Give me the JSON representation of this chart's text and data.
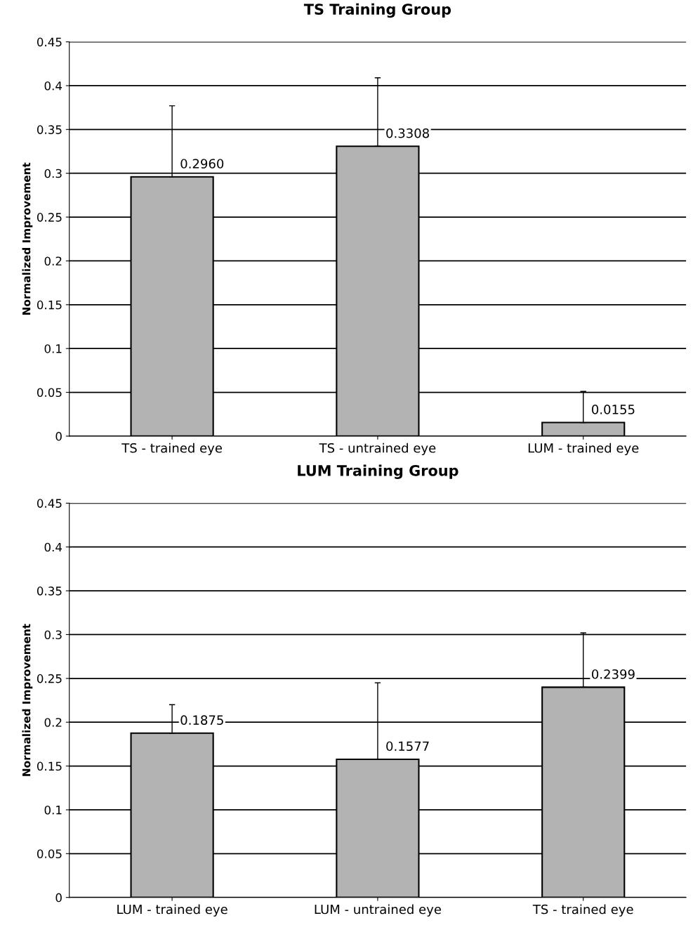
{
  "chart_data": [
    {
      "type": "bar",
      "title": "TS Training Group",
      "ylabel": "Normalized Improvement",
      "categories": [
        "TS - trained eye",
        "TS - untrained eye",
        "LUM - trained eye"
      ],
      "values": [
        0.296,
        0.3308,
        0.0155
      ],
      "value_labels": [
        "0.2960",
        "0.3308",
        "0.0155"
      ],
      "color": "#b3b3b3",
      "errors": [
        [
          0.296,
          0.377
        ],
        [
          0.3308,
          0.409
        ],
        [
          0.0155,
          0.051
        ]
      ],
      "ylim": [
        0,
        0.45
      ],
      "yticks": [
        0,
        0.05,
        0.1,
        0.15,
        0.2,
        0.25,
        0.3,
        0.35,
        0.4,
        0.45
      ],
      "grid": "y",
      "legend": false
    },
    {
      "type": "bar",
      "title": "LUM Training Group",
      "ylabel": "Normalized Improvement",
      "categories": [
        "LUM - trained eye",
        "LUM - untrained eye",
        "TS - trained eye"
      ],
      "values": [
        0.1875,
        0.1577,
        0.2399
      ],
      "value_labels": [
        "0.1875",
        "0.1577",
        "0.2399"
      ],
      "color": "#b3b3b3",
      "errors": [
        [
          0.1875,
          0.22
        ],
        [
          0.1577,
          0.245
        ],
        [
          0.2399,
          0.302
        ]
      ],
      "ylim": [
        0,
        0.45
      ],
      "yticks": [
        0,
        0.05,
        0.1,
        0.15,
        0.2,
        0.25,
        0.3,
        0.35,
        0.4,
        0.45
      ],
      "grid": "y",
      "legend": false
    }
  ]
}
